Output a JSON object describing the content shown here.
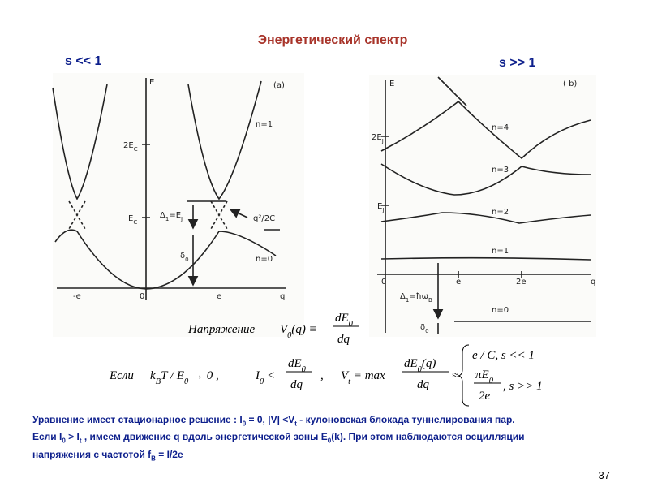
{
  "title": "Энергетический спектр",
  "left_label": "s << 1",
  "right_label": "s >> 1",
  "fig_a": {
    "axis_e": "E",
    "axis_q": "q",
    "tag": "(a)",
    "y_2ec": [
      "2E",
      "C"
    ],
    "y_ec": [
      "E",
      "C"
    ],
    "x_neg_e": "-e",
    "x_zero": "0",
    "x_e": "e",
    "n1": "n=1",
    "n0": "n=0",
    "delta1": [
      "Δ",
      "1",
      "=E",
      "J"
    ],
    "delta0": [
      "δ",
      "0"
    ],
    "q2c": "q²/2C"
  },
  "fig_b": {
    "axis_e": "E",
    "axis_q": "q",
    "tag": "( b)",
    "y_2ej": [
      "2E",
      "J"
    ],
    "y_ej": [
      "E",
      "J"
    ],
    "x_zero": "0",
    "x_e": "e",
    "x_2e": "2e",
    "n4": "n=4",
    "n3": "n=3",
    "n2": "n=2",
    "n1": "n=1",
    "n0": "n=0",
    "delta1": [
      "Δ",
      "1",
      "=ħω",
      "B"
    ],
    "delta0": [
      "δ",
      "0"
    ]
  },
  "formula_voltage": {
    "label": "Напряжение",
    "lhs": [
      "V",
      "0",
      "(q) ≡"
    ],
    "num": [
      "dE",
      "0"
    ],
    "den": "dq"
  },
  "formula_condition": {
    "if": "Если",
    "kbt": [
      "k",
      "B",
      "T / E",
      "0",
      " → 0 ,"
    ],
    "i0": [
      "I",
      "0",
      " <"
    ],
    "num1": [
      "dE",
      "0"
    ],
    "den1": "dq",
    "comma": ",",
    "vt": [
      "V",
      "t",
      " ≡ max"
    ],
    "num2": [
      "dE",
      "0",
      "(q)"
    ],
    "den2": "dq",
    "approx": "≈",
    "case1": "e / C,    s << 1",
    "case2_num": [
      "πE",
      "0"
    ],
    "case2_den": "2e",
    "case2_cond": ",    s >> 1"
  },
  "body_lines": [
    [
      "Уравнение имеет стационарное решение : I",
      "0",
      " = 0, |V| <V",
      "t",
      "  - кулоновская блокада туннелирования пар."
    ],
    [
      "Если I",
      "0",
      " > I",
      "t",
      " , имеем движение q вдоль энергетической зоны E",
      "0",
      "(k). При этом наблюдаются осцилляции"
    ],
    [
      "напряжения с частотой f",
      "B",
      " = I/2e"
    ]
  ],
  "page_number": "37"
}
